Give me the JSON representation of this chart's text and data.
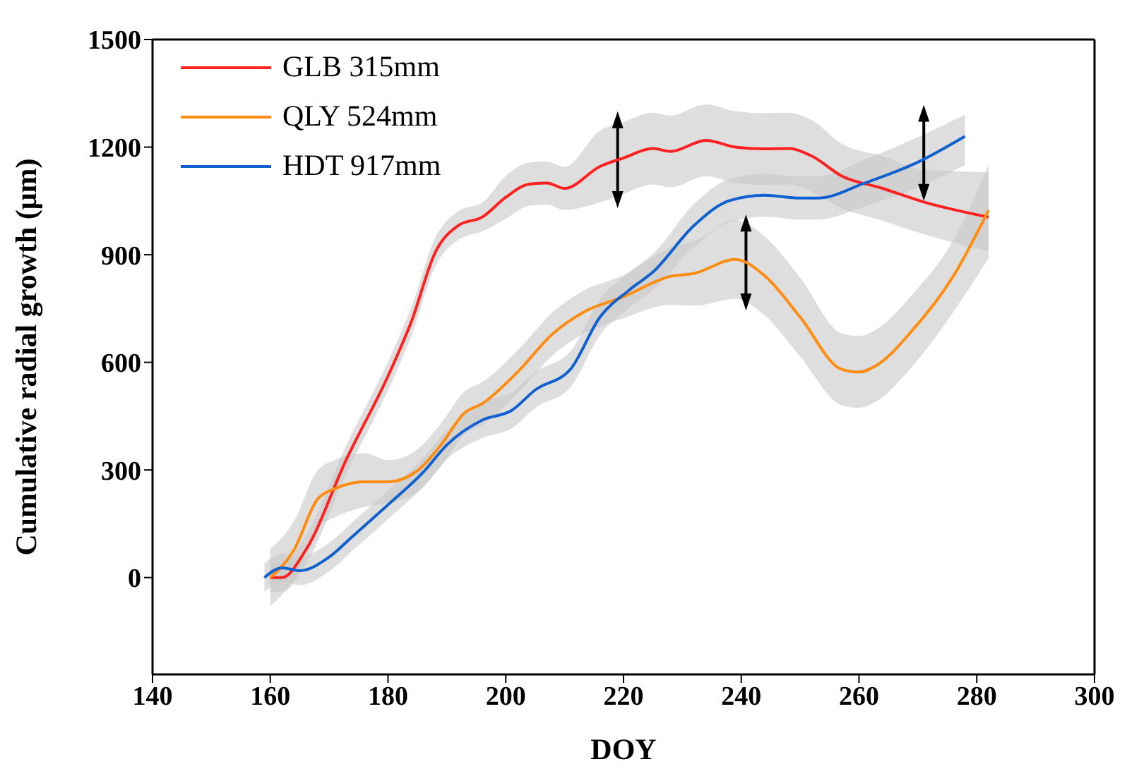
{
  "chart_data": {
    "type": "line",
    "xlabel": "DOY",
    "ylabel": "Cumulative radial growth (μm)",
    "xlim": [
      140,
      300
    ],
    "xticks": [
      140,
      160,
      180,
      200,
      220,
      240,
      260,
      280,
      300
    ],
    "ylim": [
      -270,
      1500
    ],
    "yticks": [
      0,
      300,
      600,
      900,
      1200,
      1500
    ],
    "legend": "top left",
    "marker": "none",
    "line_style": "solid",
    "series": [
      {
        "name": "GLB 315mm",
        "color": "#ff2020",
        "x": [
          160,
          162,
          166,
          173,
          180,
          184,
          188,
          192,
          196,
          200,
          204,
          207,
          210,
          216,
          220,
          225,
          228,
          234,
          239,
          244,
          248,
          252,
          257,
          264,
          271,
          282
        ],
        "values": [
          0,
          0,
          76,
          332,
          562,
          715,
          906,
          982,
          1005,
          1060,
          1097,
          1100,
          1085,
          1146,
          1170,
          1196,
          1188,
          1219,
          1200,
          1195,
          1196,
          1175,
          1120,
          1085,
          1047,
          1005
        ],
        "lower": [
          -40,
          -40,
          36,
          292,
          522,
          675,
          866,
          942,
          965,
          1000,
          1037,
          1040,
          1025,
          1046,
          1070,
          1096,
          1088,
          1119,
          1100,
          1095,
          1096,
          1075,
          1030,
          995,
          957,
          910
        ],
        "upper": [
          40,
          40,
          116,
          372,
          602,
          755,
          946,
          1022,
          1045,
          1120,
          1157,
          1160,
          1145,
          1246,
          1270,
          1296,
          1288,
          1319,
          1300,
          1295,
          1296,
          1275,
          1210,
          1175,
          1137,
          1130
        ]
      },
      {
        "name": "QLY 524mm",
        "color": "#ff8c10",
        "x": [
          160,
          164,
          168,
          171,
          176,
          180,
          185,
          189,
          193,
          196,
          202,
          208,
          213,
          220,
          228,
          232,
          239,
          244,
          250,
          257,
          260,
          263,
          269,
          276,
          282
        ],
        "values": [
          0,
          76,
          218,
          248,
          267,
          267,
          298,
          370,
          459,
          485,
          573,
          680,
          738,
          783,
          840,
          848,
          887,
          841,
          726,
          581,
          573,
          592,
          688,
          840,
          1024
        ],
        "lower": [
          -80,
          -4,
          138,
          168,
          197,
          207,
          238,
          310,
          399,
          425,
          513,
          620,
          678,
          723,
          760,
          758,
          777,
          731,
          616,
          481,
          473,
          492,
          588,
          740,
          890
        ],
        "upper": [
          80,
          156,
          298,
          328,
          347,
          327,
          358,
          430,
          519,
          545,
          633,
          740,
          798,
          843,
          920,
          938,
          997,
          951,
          836,
          681,
          673,
          692,
          788,
          940,
          1150
        ]
      },
      {
        "name": "HDT 917mm",
        "color": "#1060d0",
        "x": [
          159,
          162,
          165,
          170,
          174,
          180,
          186,
          190,
          196,
          201,
          205,
          211,
          216,
          221,
          225,
          232,
          238,
          244,
          250,
          253,
          261,
          270,
          278
        ],
        "values": [
          0,
          27,
          19,
          57,
          115,
          203,
          294,
          370,
          439,
          466,
          523,
          581,
          726,
          802,
          852,
          982,
          1051,
          1066,
          1058,
          1058,
          1100,
          1158,
          1230
        ],
        "lower": [
          -40,
          -13,
          -21,
          17,
          75,
          163,
          254,
          330,
          389,
          416,
          473,
          531,
          676,
          752,
          802,
          922,
          991,
          1006,
          998,
          998,
          1035,
          1088,
          1150
        ],
        "upper": [
          40,
          67,
          59,
          97,
          155,
          243,
          334,
          410,
          489,
          516,
          573,
          631,
          776,
          852,
          902,
          1042,
          1111,
          1126,
          1118,
          1118,
          1165,
          1228,
          1290
        ]
      }
    ]
  }
}
